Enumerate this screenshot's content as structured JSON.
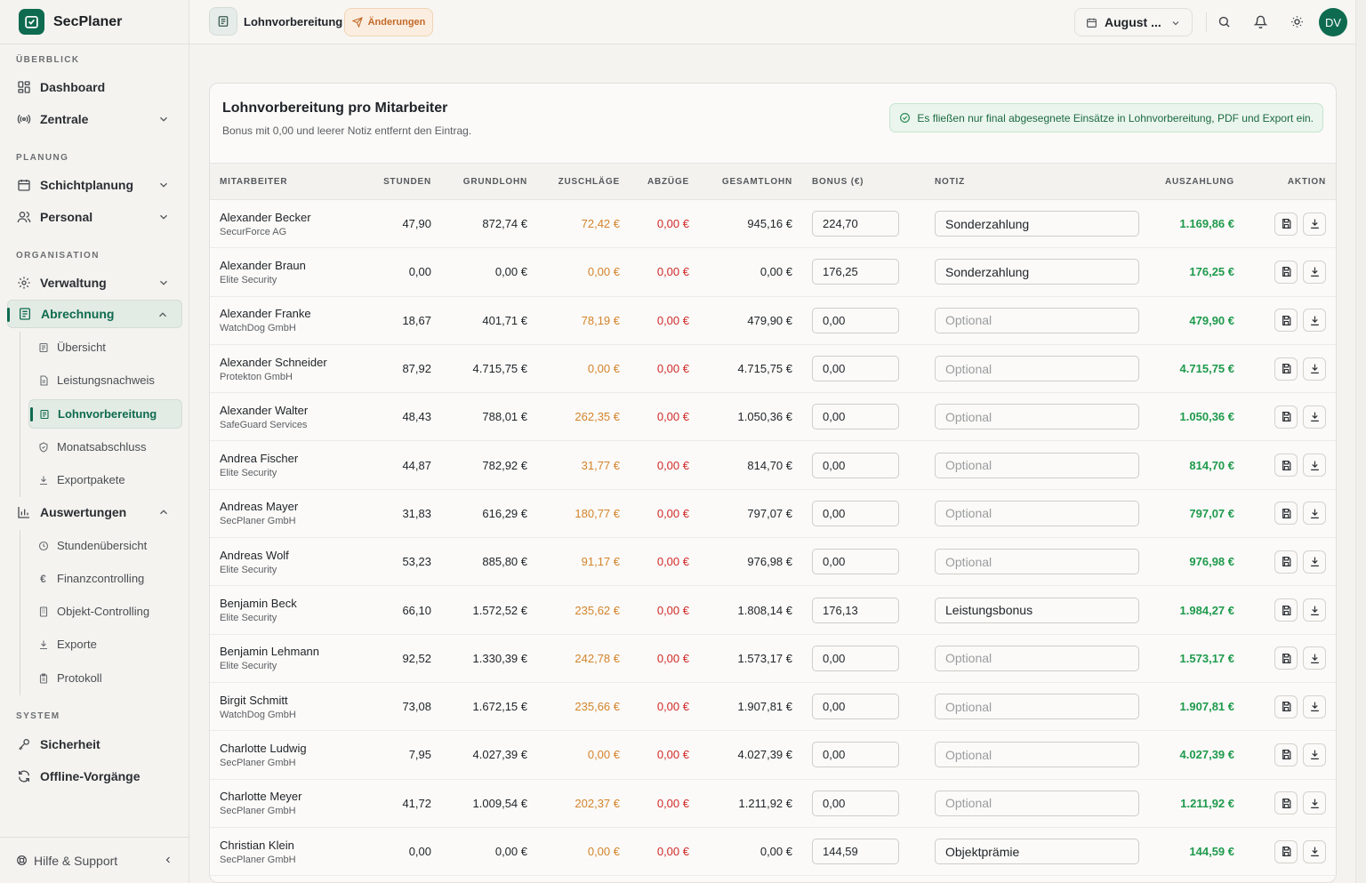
{
  "brand": {
    "name": "SecPlaner"
  },
  "sidebar": {
    "sections": {
      "overview": "ÜBERBLICK",
      "planning": "PLANUNG",
      "organisation": "ORGANISATION",
      "system": "SYSTEM"
    },
    "items": {
      "dashboard": "Dashboard",
      "zentrale": "Zentrale",
      "schichtplanung": "Schichtplanung",
      "personal": "Personal",
      "verwaltung": "Verwaltung",
      "abrechnung": "Abrechnung",
      "auswertungen": "Auswertungen",
      "sicherheit": "Sicherheit",
      "offline": "Offline-Vorgänge"
    },
    "abrechnung_sub": [
      "Übersicht",
      "Leistungsnachweis",
      "Lohnvorbereitung",
      "Monatsabschluss",
      "Exportpakete"
    ],
    "auswertungen_sub": [
      "Stundenübersicht",
      "Finanzcontrolling",
      "Objekt-Controlling",
      "Exporte",
      "Protokoll"
    ],
    "footer": {
      "help": "Hilfe & Support"
    }
  },
  "topbar": {
    "page_title": "Lohnvorbereitung",
    "changes_label": "Änderungen",
    "month": "August ...",
    "avatar_initials": "DV"
  },
  "card": {
    "title": "Lohnvorbereitung pro Mitarbeiter",
    "subtitle": "Bonus mit 0,00 und leerer Notiz entfernt den Eintrag.",
    "info": "Es fließen nur final abgesegnete Einsätze in Lohnvorbereitung, PDF und Export ein."
  },
  "table": {
    "headers": {
      "employee": "MITARBEITER",
      "hours": "STUNDEN",
      "base": "GRUNDLOHN",
      "surcharges": "ZUSCHLÄGE",
      "deductions": "ABZÜGE",
      "total": "GESAMTLOHN",
      "bonus": "BONUS (€)",
      "note": "NOTIZ",
      "payout": "AUSZAHLUNG",
      "action": "AKTION"
    },
    "note_placeholder": "Optional",
    "rows": [
      {
        "name": "Alexander Becker",
        "company": "SecurForce AG",
        "hours": "47,90",
        "base": "872,74 €",
        "surcharges": "72,42 €",
        "deductions": "0,00 €",
        "total": "945,16 €",
        "bonus": "224,70",
        "note": "Sonderzahlung",
        "payout": "1.169,86 €"
      },
      {
        "name": "Alexander Braun",
        "company": "Elite Security",
        "hours": "0,00",
        "base": "0,00 €",
        "surcharges": "0,00 €",
        "deductions": "0,00 €",
        "total": "0,00 €",
        "bonus": "176,25",
        "note": "Sonderzahlung",
        "payout": "176,25 €"
      },
      {
        "name": "Alexander Franke",
        "company": "WatchDog GmbH",
        "hours": "18,67",
        "base": "401,71 €",
        "surcharges": "78,19 €",
        "deductions": "0,00 €",
        "total": "479,90 €",
        "bonus": "0,00",
        "note": "",
        "payout": "479,90 €"
      },
      {
        "name": "Alexander Schneider",
        "company": "Protekton GmbH",
        "hours": "87,92",
        "base": "4.715,75 €",
        "surcharges": "0,00 €",
        "deductions": "0,00 €",
        "total": "4.715,75 €",
        "bonus": "0,00",
        "note": "",
        "payout": "4.715,75 €"
      },
      {
        "name": "Alexander Walter",
        "company": "SafeGuard Services",
        "hours": "48,43",
        "base": "788,01 €",
        "surcharges": "262,35 €",
        "deductions": "0,00 €",
        "total": "1.050,36 €",
        "bonus": "0,00",
        "note": "",
        "payout": "1.050,36 €"
      },
      {
        "name": "Andrea Fischer",
        "company": "Elite Security",
        "hours": "44,87",
        "base": "782,92 €",
        "surcharges": "31,77 €",
        "deductions": "0,00 €",
        "total": "814,70 €",
        "bonus": "0,00",
        "note": "",
        "payout": "814,70 €"
      },
      {
        "name": "Andreas Mayer",
        "company": "SecPlaner GmbH",
        "hours": "31,83",
        "base": "616,29 €",
        "surcharges": "180,77 €",
        "deductions": "0,00 €",
        "total": "797,07 €",
        "bonus": "0,00",
        "note": "",
        "payout": "797,07 €"
      },
      {
        "name": "Andreas Wolf",
        "company": "Elite Security",
        "hours": "53,23",
        "base": "885,80 €",
        "surcharges": "91,17 €",
        "deductions": "0,00 €",
        "total": "976,98 €",
        "bonus": "0,00",
        "note": "",
        "payout": "976,98 €"
      },
      {
        "name": "Benjamin Beck",
        "company": "Elite Security",
        "hours": "66,10",
        "base": "1.572,52 €",
        "surcharges": "235,62 €",
        "deductions": "0,00 €",
        "total": "1.808,14 €",
        "bonus": "176,13",
        "note": "Leistungsbonus",
        "payout": "1.984,27 €"
      },
      {
        "name": "Benjamin Lehmann",
        "company": "Elite Security",
        "hours": "92,52",
        "base": "1.330,39 €",
        "surcharges": "242,78 €",
        "deductions": "0,00 €",
        "total": "1.573,17 €",
        "bonus": "0,00",
        "note": "",
        "payout": "1.573,17 €"
      },
      {
        "name": "Birgit Schmitt",
        "company": "WatchDog GmbH",
        "hours": "73,08",
        "base": "1.672,15 €",
        "surcharges": "235,66 €",
        "deductions": "0,00 €",
        "total": "1.907,81 €",
        "bonus": "0,00",
        "note": "",
        "payout": "1.907,81 €"
      },
      {
        "name": "Charlotte Ludwig",
        "company": "SecPlaner GmbH",
        "hours": "7,95",
        "base": "4.027,39 €",
        "surcharges": "0,00 €",
        "deductions": "0,00 €",
        "total": "4.027,39 €",
        "bonus": "0,00",
        "note": "",
        "payout": "4.027,39 €"
      },
      {
        "name": "Charlotte Meyer",
        "company": "SecPlaner GmbH",
        "hours": "41,72",
        "base": "1.009,54 €",
        "surcharges": "202,37 €",
        "deductions": "0,00 €",
        "total": "1.211,92 €",
        "bonus": "0,00",
        "note": "",
        "payout": "1.211,92 €"
      },
      {
        "name": "Christian Klein",
        "company": "SecPlaner GmbH",
        "hours": "0,00",
        "base": "0,00 €",
        "surcharges": "0,00 €",
        "deductions": "0,00 €",
        "total": "0,00 €",
        "bonus": "144,59",
        "note": "Objektprämie",
        "payout": "144,59 €"
      }
    ]
  },
  "colors": {
    "accent": "#0f6b4f",
    "surcharge": "#d3842c",
    "deduction": "#d02b2b",
    "payout": "#1f9a4d"
  }
}
